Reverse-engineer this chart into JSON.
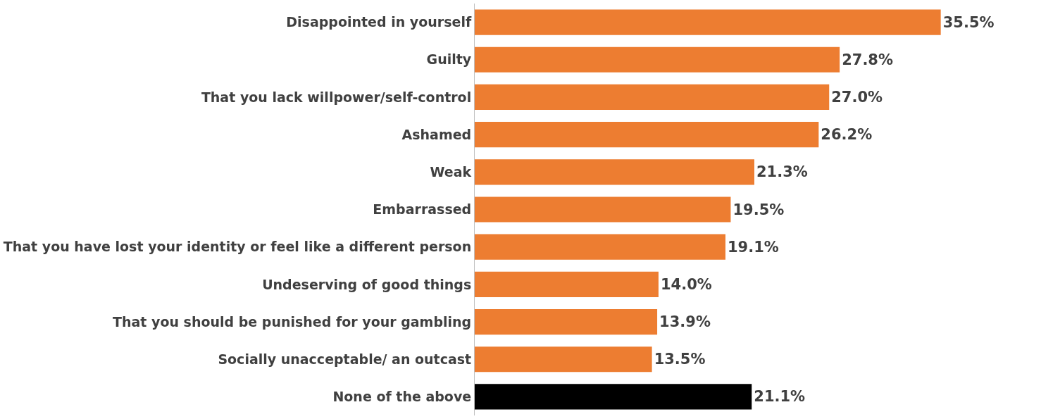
{
  "chart_data": {
    "type": "bar",
    "orientation": "horizontal",
    "categories": [
      "Disappointed in yourself",
      "Guilty",
      "That you lack willpower/self-control",
      "Ashamed",
      "Weak",
      "Embarrassed",
      "That you have lost your identity or feel like a different person",
      "Undeserving of good things",
      "That you should be punished for your gambling",
      "Socially unacceptable/ an outcast",
      "None of the above"
    ],
    "values": [
      35.5,
      27.8,
      27.0,
      26.2,
      21.3,
      19.5,
      19.1,
      14.0,
      13.9,
      13.5,
      21.1
    ],
    "value_labels": [
      "35.5%",
      "27.8%",
      "27.0%",
      "26.2%",
      "21.3%",
      "19.5%",
      "19.1%",
      "14.0%",
      "13.9%",
      "13.5%",
      "21.1%"
    ],
    "colors": [
      "#ed7d31",
      "#ed7d31",
      "#ed7d31",
      "#ed7d31",
      "#ed7d31",
      "#ed7d31",
      "#ed7d31",
      "#ed7d31",
      "#ed7d31",
      "#ed7d31",
      "#000000"
    ],
    "legend": false
  }
}
